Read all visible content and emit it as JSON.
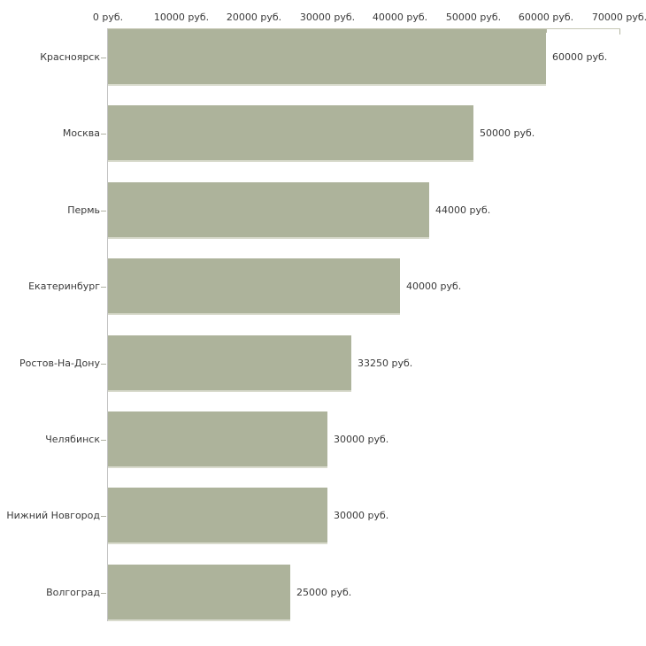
{
  "chart_data": {
    "type": "bar",
    "orientation": "horizontal",
    "title": "",
    "categories": [
      "Красноярск",
      "Москва",
      "Пермь",
      "Екатеринбург",
      "Ростов-На-Дону",
      "Челябинск",
      "Нижний Новгород",
      "Волгоград"
    ],
    "values": [
      60000,
      50000,
      44000,
      40000,
      33250,
      30000,
      30000,
      25000
    ],
    "value_labels": [
      "60000 руб.",
      "50000 руб.",
      "44000 руб.",
      "40000 руб.",
      "33250 руб.",
      "30000 руб.",
      "30000 руб.",
      "25000 руб."
    ],
    "x_axis": {
      "position": "top",
      "min": 0,
      "max": 70000,
      "tick_step": 10000,
      "tick_values": [
        0,
        10000,
        20000,
        30000,
        40000,
        50000,
        60000,
        70000
      ],
      "tick_labels": [
        "0 руб.",
        "10000 руб.",
        "20000 руб.",
        "30000 руб.",
        "40000 руб.",
        "50000 руб.",
        "60000 руб.",
        "70000 руб."
      ]
    },
    "grid": false,
    "legend": false,
    "colors": {
      "background": "#ffffff",
      "bar_fill": "#adb39b",
      "bar_bottom_edge": "#d9dbcd",
      "top_axis_line": "#c6c8b6",
      "left_axis_line": "#c4c4c4",
      "top_tick": "#b3b5a1",
      "category_tick": "#b0b2a4",
      "text": "#3a3a3a"
    }
  }
}
